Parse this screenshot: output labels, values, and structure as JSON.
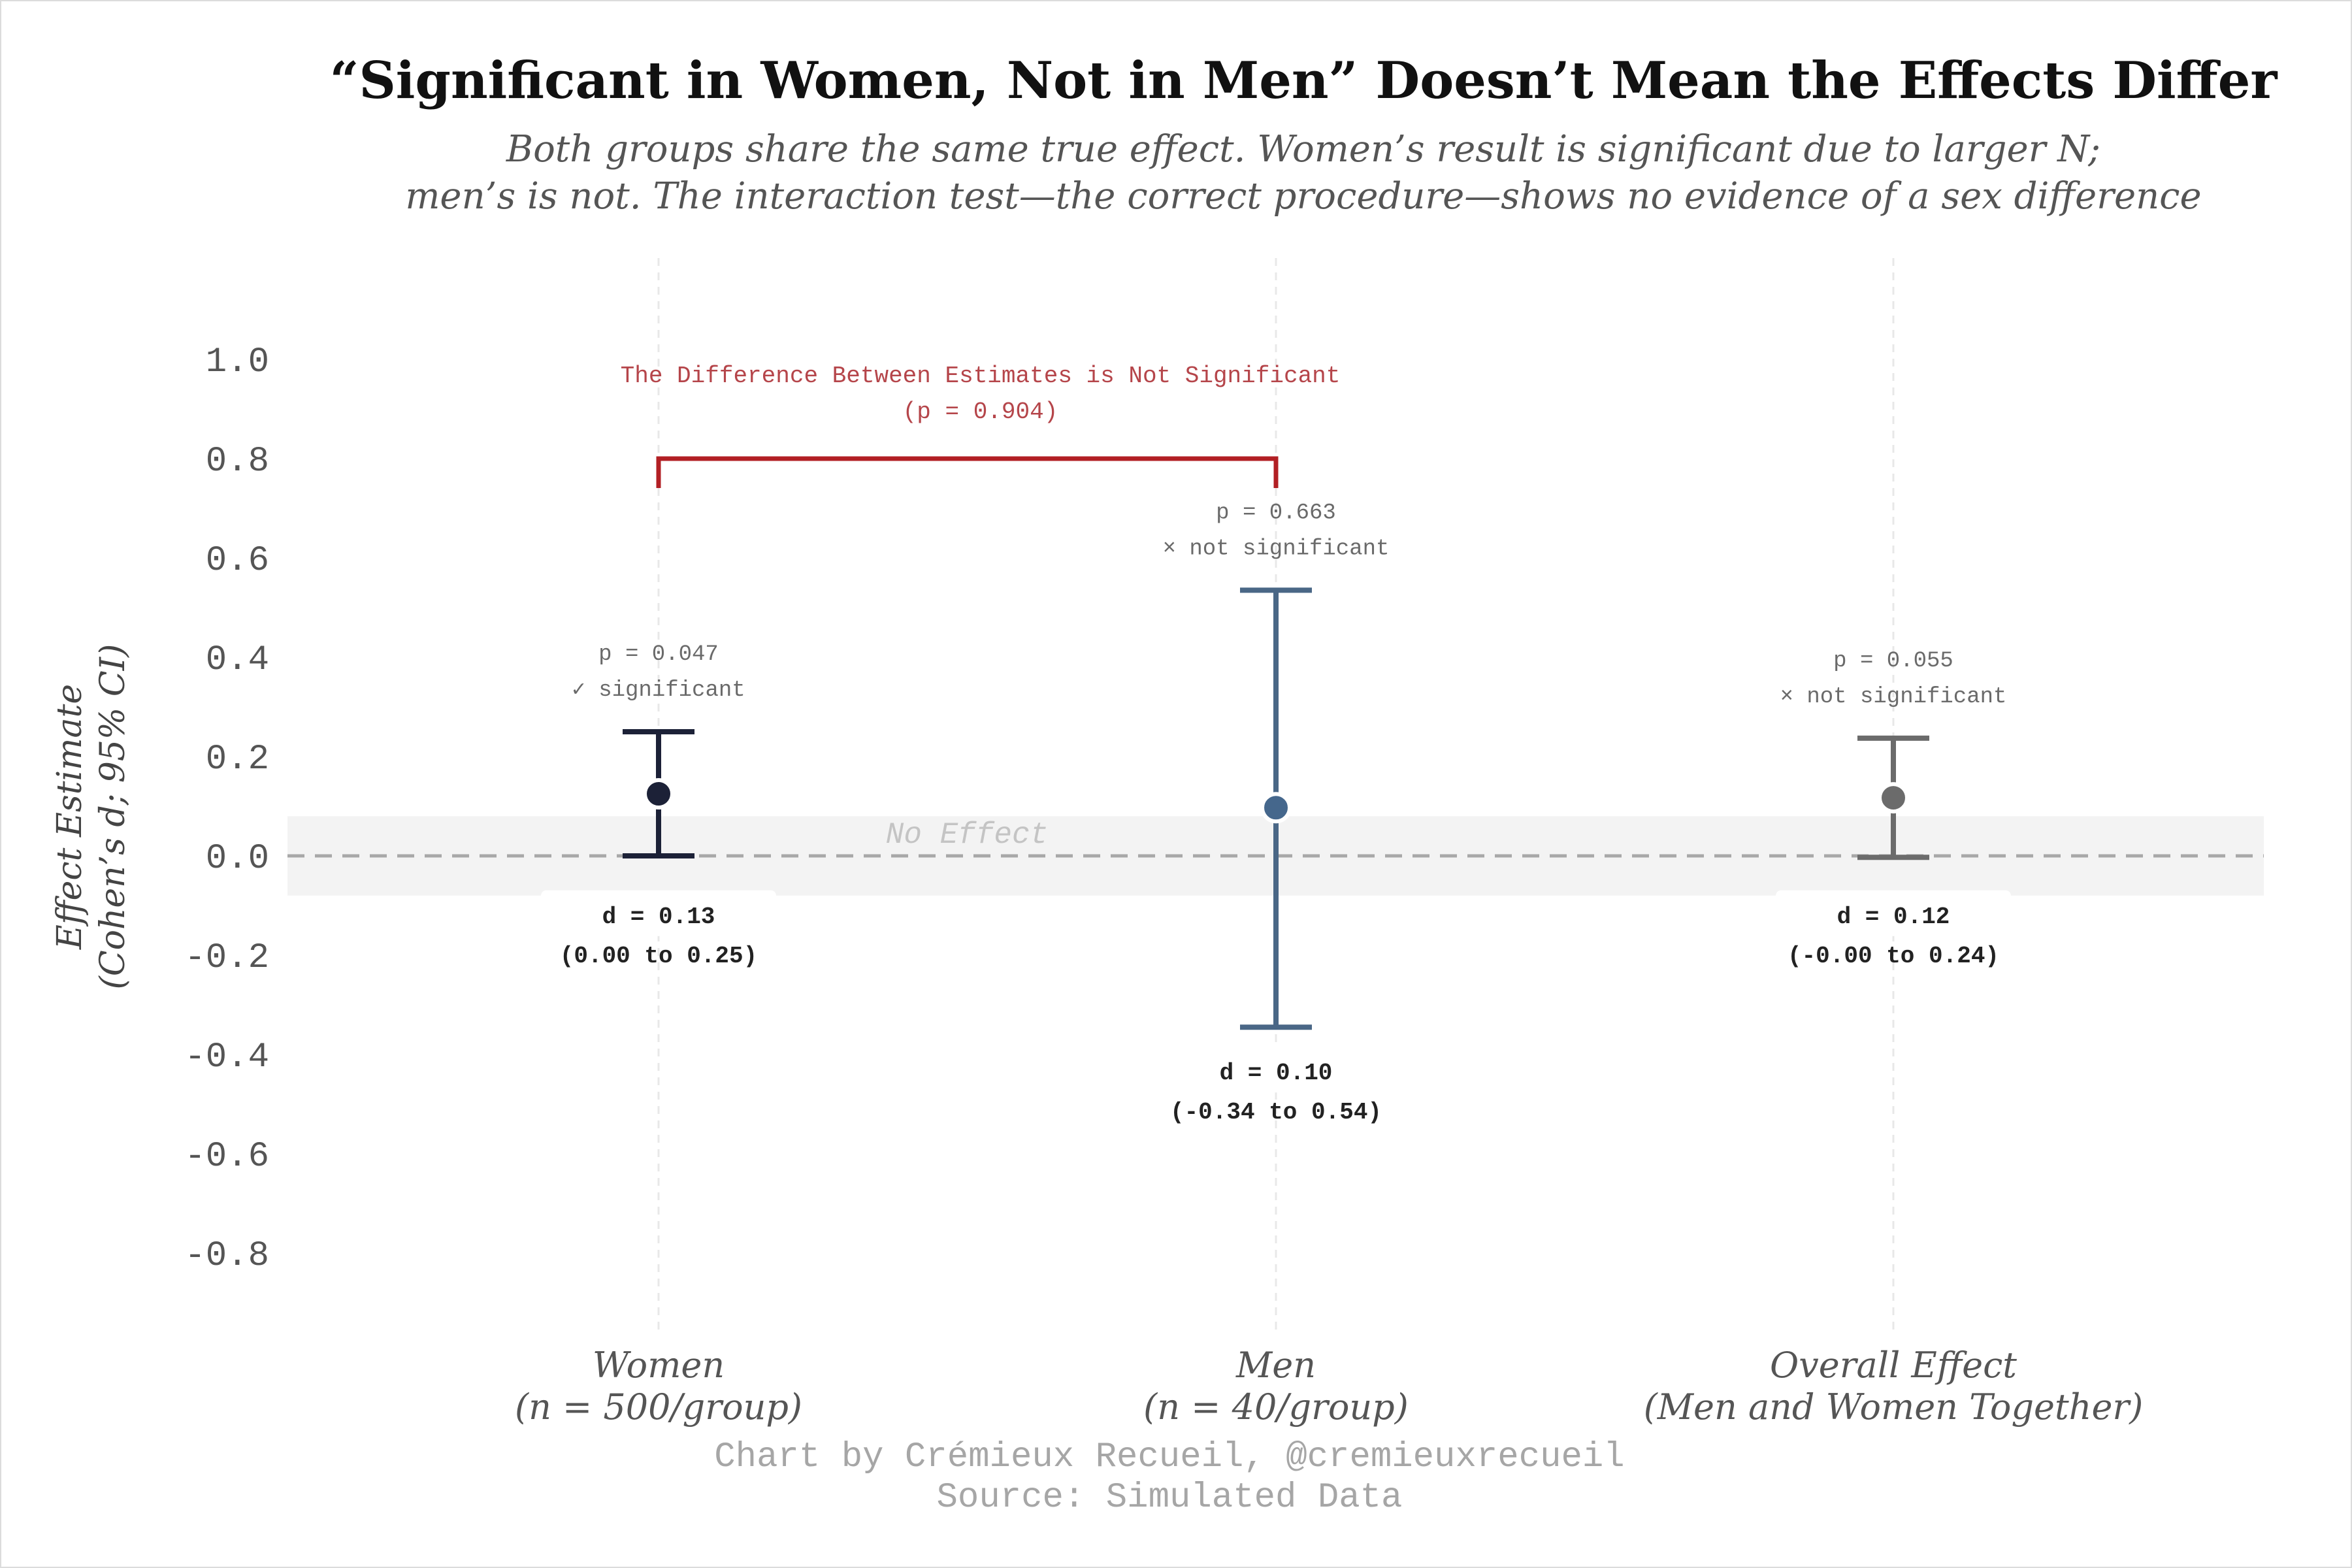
{
  "title": "“Significant in Women, Not in Men” Doesn’t Mean the Effects Differ",
  "subtitle_lines": [
    "Both groups share the same true effect. Women’s result is significant due to larger N;",
    "men’s is not. The interaction test—the correct procedure—shows no evidence of a sex difference"
  ],
  "caption_lines": [
    "Chart by Crémieux Recueil, @cremieuxrecueil",
    "Source: Simulated Data"
  ],
  "colors": {
    "women": "#1c2137",
    "men": "#4a6786",
    "men_point": "#45678c",
    "overall": "#6b6b6b",
    "bracket": "#b21f24",
    "bracket_text": "#b5454a",
    "zero_band": "#f3f3f3",
    "zero_line": "#a8a8a8",
    "grid": "#e8e8e8"
  },
  "chart_data": {
    "type": "errorbar",
    "title": "“Significant in Women, Not in Men” Doesn’t Mean the Effects Differ",
    "ylabel_lines": [
      "Effect Estimate",
      "(Cohen’s d; 95% CI)"
    ],
    "ylim": [
      -0.95,
      1.05
    ],
    "yticks": [
      1.0,
      0.8,
      0.6,
      0.4,
      0.2,
      0.0,
      -0.2,
      -0.4,
      -0.6,
      -0.8
    ],
    "ytick_labels": [
      "1.0",
      "0.8",
      "0.6",
      "0.4",
      "0.2",
      "0.0",
      "-0.2",
      "-0.4",
      "-0.6",
      "-0.8"
    ],
    "zero_band": [
      -0.08,
      0.08
    ],
    "zero_band_label": "No Effect",
    "groups": [
      {
        "key": "women",
        "label_lines": [
          "Women",
          "(n = 500/group)"
        ],
        "estimate": 0.125,
        "ci_low": 0.0,
        "ci_high": 0.25,
        "p_label": "p = 0.047",
        "sig_label": "✓ significant",
        "d_label": "d = 0.13",
        "ci_label": "(0.00 to 0.25)"
      },
      {
        "key": "men",
        "label_lines": [
          "Men",
          "(n = 40/group)"
        ],
        "estimate": 0.097,
        "ci_low": -0.345,
        "ci_high": 0.535,
        "p_label": "p = 0.663",
        "sig_label": "× not significant",
        "d_label": "d = 0.10",
        "ci_label": "(-0.34 to 0.54)"
      },
      {
        "key": "overall",
        "label_lines": [
          "Overall Effect",
          "(Men and Women Together)"
        ],
        "estimate": 0.117,
        "ci_low": -0.003,
        "ci_high": 0.237,
        "p_label": "p = 0.055",
        "sig_label": "× not significant",
        "d_label": "d = 0.12",
        "ci_label": "(-0.00 to 0.24)"
      }
    ],
    "comparison": {
      "from": "women",
      "to": "men",
      "y": 0.8,
      "label": "The Difference Between Estimates is Not Significant",
      "p_label": "(p = 0.904)"
    }
  }
}
